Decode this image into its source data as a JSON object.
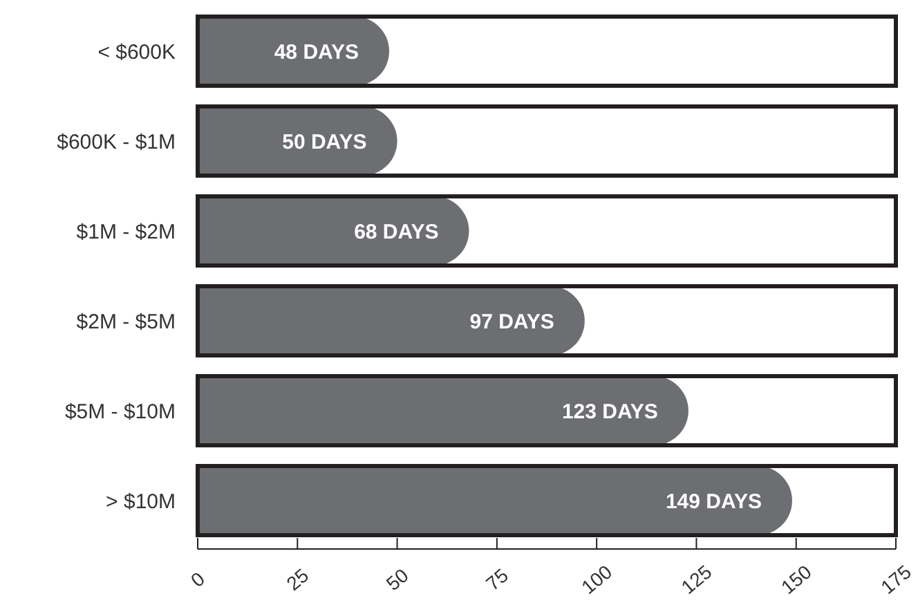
{
  "chart_data": {
    "type": "bar",
    "orientation": "horizontal",
    "categories": [
      "< $600K",
      "$600K - $1M",
      "$1M - $2M",
      "$2M - $5M",
      "$5M - $10M",
      "> $10M"
    ],
    "values": [
      48,
      50,
      68,
      97,
      123,
      149
    ],
    "value_labels": [
      "48 DAYS",
      "50 DAYS",
      "68 DAYS",
      "97 DAYS",
      "123 DAYS",
      "149 DAYS"
    ],
    "color": "#6d6e71",
    "xlim": [
      0,
      175
    ],
    "xticks": [
      0,
      25,
      50,
      75,
      100,
      125,
      150,
      175
    ],
    "grid": false
  }
}
